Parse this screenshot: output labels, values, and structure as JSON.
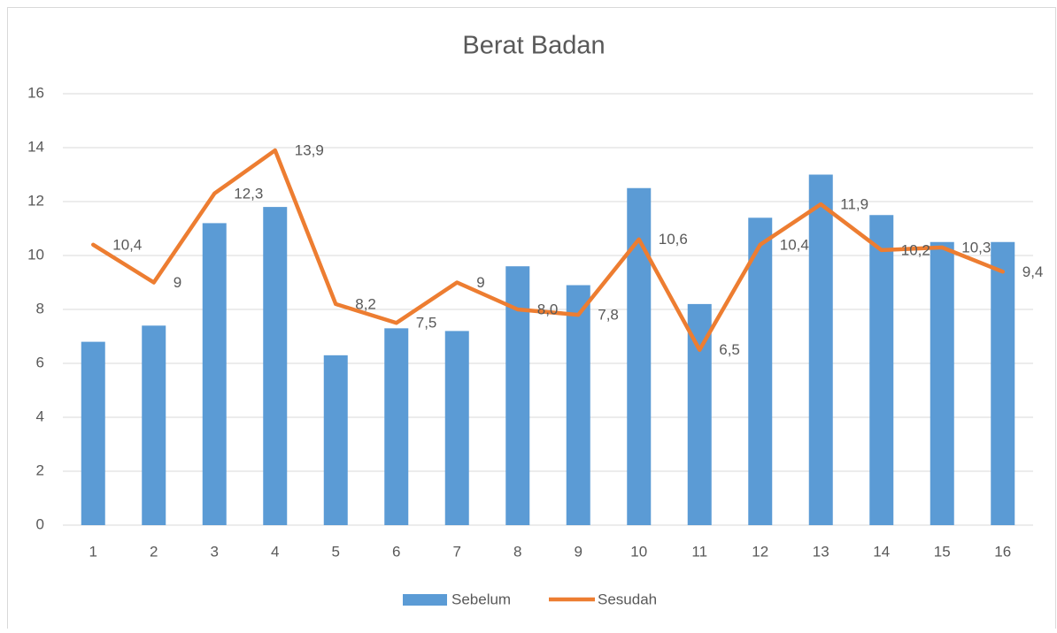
{
  "chart_data": {
    "type": "combo",
    "title": "Berat Badan",
    "categories": [
      "1",
      "2",
      "3",
      "4",
      "5",
      "6",
      "7",
      "8",
      "9",
      "10",
      "11",
      "12",
      "13",
      "14",
      "15",
      "16"
    ],
    "series": [
      {
        "name": "Sebelum",
        "type": "bar",
        "color": "#5b9bd5",
        "values": [
          6.8,
          7.4,
          11.2,
          11.8,
          6.3,
          7.3,
          7.2,
          9.6,
          8.9,
          12.5,
          8.2,
          11.4,
          13.0,
          11.5,
          10.5,
          10.5
        ]
      },
      {
        "name": "Sesudah",
        "type": "line",
        "color": "#ed7d31",
        "values": [
          10.4,
          9,
          12.3,
          13.9,
          8.2,
          7.5,
          9,
          8.0,
          7.8,
          10.6,
          6.5,
          10.4,
          11.9,
          10.2,
          10.3,
          9.4
        ],
        "value_labels": [
          "10,4",
          "9",
          "12,3",
          "13,9",
          "8,2",
          "7,5",
          "9",
          "8,0",
          "7,8",
          "10,6",
          "6,5",
          "10,4",
          "11,9",
          "10,2",
          "10,3",
          "9,4"
        ]
      }
    ],
    "ylim": [
      0,
      16
    ],
    "yticks": [
      0,
      2,
      4,
      6,
      8,
      10,
      12,
      14,
      16
    ],
    "grid": true,
    "legend": "bottom"
  }
}
